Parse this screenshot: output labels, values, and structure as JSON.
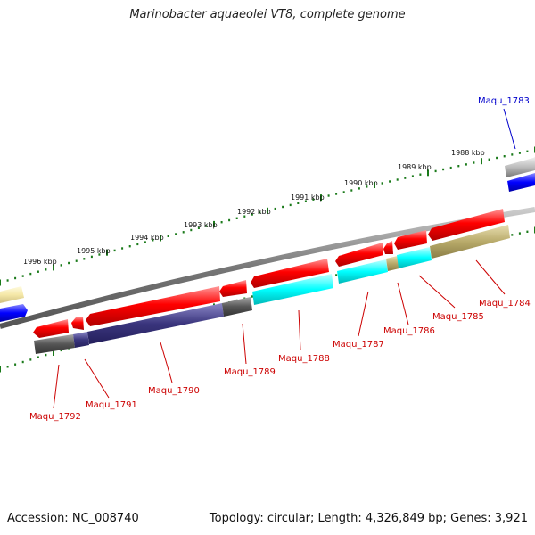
{
  "title": "Marinobacter aquaeolei VT8, complete genome",
  "footer": {
    "accession": "Accession: NC_008740",
    "info": "Topology: circular; Length: 4,326,849 bp; Genes: 3,921"
  },
  "kbp_labels": [
    "1996 kbp",
    "1995 kbp",
    "1994 kbp",
    "1993 kbp",
    "1992 kbp",
    "1991 kbp",
    "1990 kbp",
    "1989 kbp",
    "1988 kbp"
  ],
  "gene_labels": [
    "Maqu_1792",
    "Maqu_1791",
    "Maqu_1790",
    "Maqu_1789",
    "Maqu_1788",
    "Maqu_1787",
    "Maqu_1786",
    "Maqu_1785",
    "Maqu_1784",
    "Maqu_1783"
  ],
  "colors": {
    "forward_cds": "#ff0000",
    "reverse_dark": "#555555",
    "reverse_navy": "#3a357d",
    "reverse_cyan": "#00ffff",
    "reverse_khaki": "#b8aa6a",
    "tick_green": "#1a7a1a",
    "label_red": "#cc0000",
    "label_blue": "#0000cc"
  }
}
